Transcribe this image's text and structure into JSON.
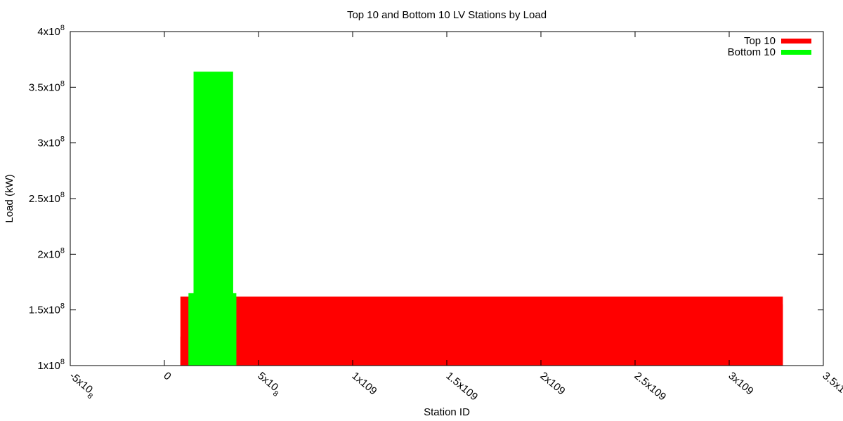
{
  "chart_data": {
    "type": "bar",
    "title": "Top 10 and Bottom 10 LV Stations by Load",
    "xlabel": "Station ID",
    "ylabel": "Load (kW)",
    "xlim": [
      -500000000,
      3500000000
    ],
    "ylim": [
      100000000,
      400000000
    ],
    "x_ticks": [
      {
        "value": -500000000,
        "mantissa": "-5x10",
        "exp": "8"
      },
      {
        "value": 0,
        "mantissa": "0",
        "exp": ""
      },
      {
        "value": 500000000,
        "mantissa": "5x10",
        "exp": "8"
      },
      {
        "value": 1000000000,
        "mantissa": "1x109",
        "exp": ""
      },
      {
        "value": 1500000000,
        "mantissa": "1.5x109",
        "exp": ""
      },
      {
        "value": 2000000000,
        "mantissa": "2x109",
        "exp": ""
      },
      {
        "value": 2500000000,
        "mantissa": "2.5x109",
        "exp": ""
      },
      {
        "value": 3000000000,
        "mantissa": "3x109",
        "exp": ""
      },
      {
        "value": 3500000000,
        "mantissa": "3.5x1",
        "exp": ""
      }
    ],
    "y_ticks": [
      {
        "value": 100000000,
        "mantissa": "1x10",
        "exp": "8"
      },
      {
        "value": 150000000,
        "mantissa": "1.5x10",
        "exp": "8"
      },
      {
        "value": 200000000,
        "mantissa": "2x10",
        "exp": "8"
      },
      {
        "value": 250000000,
        "mantissa": "2.5x10",
        "exp": "8"
      },
      {
        "value": 300000000,
        "mantissa": "3x10",
        "exp": "8"
      },
      {
        "value": 350000000,
        "mantissa": "3.5x10",
        "exp": "8"
      },
      {
        "value": 400000000,
        "mantissa": "4x10",
        "exp": "8"
      }
    ],
    "legend_position": "top-right",
    "series": [
      {
        "name": "Top 10",
        "color": "#ff0000",
        "bars": [
          {
            "x0": 85000000,
            "x1": 3285000000,
            "y": 162000000
          },
          {
            "x0": 115000000,
            "x1": 3285000000,
            "y": 155000000
          },
          {
            "x0": 85000000,
            "x1": 115000000,
            "y": 126000000
          }
        ]
      },
      {
        "name": "Bottom 10",
        "color": "#00ff00",
        "bars": [
          {
            "x0": 128000000,
            "x1": 382000000,
            "y": 162000000
          },
          {
            "x0": 128000000,
            "x1": 382000000,
            "y": 165000000
          },
          {
            "x0": 155000000,
            "x1": 365000000,
            "y": 258000000
          },
          {
            "x0": 155000000,
            "x1": 365000000,
            "y": 364000000
          }
        ]
      }
    ]
  }
}
